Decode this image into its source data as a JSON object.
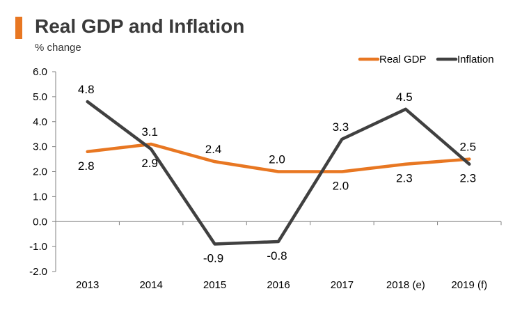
{
  "colors": {
    "accent": "#e87722",
    "real_gdp": "#e87722",
    "inflation": "#404040",
    "axis": "#808080"
  },
  "chart_data": {
    "type": "line",
    "title": "Real GDP and Inflation",
    "subtitle": "% change",
    "categories": [
      "2013",
      "2014",
      "2015",
      "2016",
      "2017",
      "2018 (e)",
      "2019 (f)"
    ],
    "series": [
      {
        "name": "Real GDP",
        "values": [
          2.8,
          3.1,
          2.4,
          2.0,
          2.0,
          2.3,
          2.5
        ],
        "value_labels": [
          "2.8",
          "3.1",
          "2.4",
          "2.0",
          "2.0",
          "2.3",
          "2.5"
        ]
      },
      {
        "name": "Inflation",
        "values": [
          4.8,
          2.9,
          -0.9,
          -0.8,
          3.3,
          4.5,
          2.3
        ],
        "value_labels": [
          "4.8",
          "2.9",
          "-0.9",
          "-0.8",
          "3.3",
          "4.5",
          "2.3"
        ]
      }
    ],
    "ylim": [
      -2.0,
      6.0
    ],
    "yticks": [
      "6.0",
      "5.0",
      "4.0",
      "3.0",
      "2.0",
      "1.0",
      "0.0",
      "-1.0",
      "-2.0"
    ],
    "grid": false,
    "legend": "top-right"
  }
}
